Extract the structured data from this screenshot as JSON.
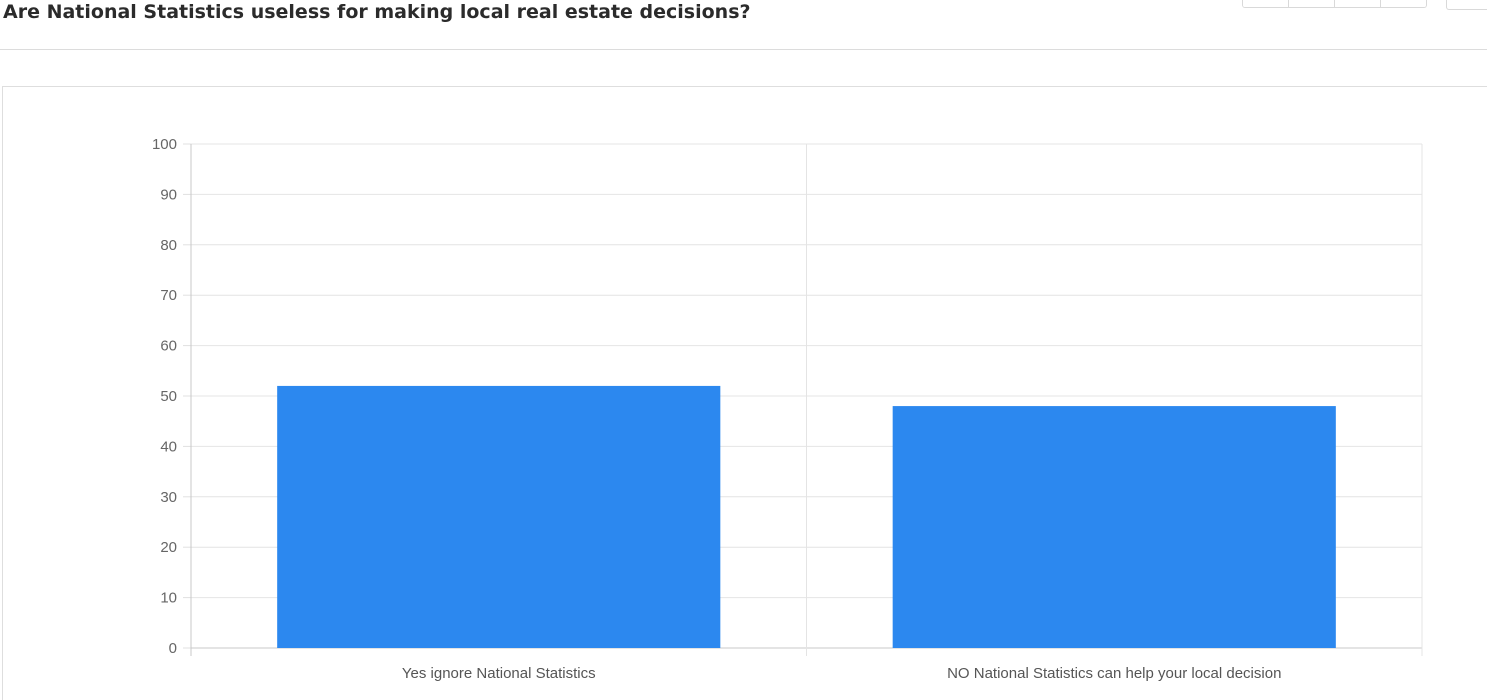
{
  "header": {
    "title": "Are National Statistics useless for making local real estate decisions?"
  },
  "chart_data": {
    "type": "bar",
    "title": "",
    "xlabel": "",
    "ylabel": "",
    "categories": [
      "Yes ignore National Statistics",
      "NO National Statistics can help your local decision"
    ],
    "values": [
      52,
      48
    ],
    "ylim": [
      0,
      100
    ],
    "yticks": [
      "0",
      "10",
      "20",
      "30",
      "40",
      "50",
      "60",
      "70",
      "80",
      "90",
      "100"
    ],
    "grid": true,
    "legend": "none",
    "bar_color": "#2c88ef"
  }
}
